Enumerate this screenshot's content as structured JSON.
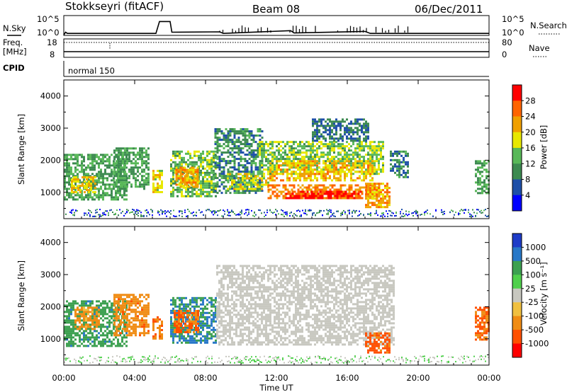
{
  "header": {
    "station": "Stokkseyri (fitACF)",
    "beam": "Beam 08",
    "date": "06/Dec/2011"
  },
  "panels": {
    "nsky_label": "N.Sky",
    "nsearch_label": "N.Search",
    "nsky_ticks": [
      "10^5",
      "10^0"
    ],
    "nsearch_ticks": [
      "10^5",
      "10^0"
    ],
    "freq_label_1": "Freq.",
    "freq_label_2": "[MHz]",
    "freq_ticks": [
      "18",
      "8"
    ],
    "nave_label": "Nave",
    "nave_ticks": [
      "80",
      "0"
    ],
    "cpid_label": "CPID",
    "cpid_value": "normal 150"
  },
  "axes": {
    "xlabel": "Time UT",
    "x_ticks": [
      "00:00",
      "04:00",
      "08:00",
      "12:00",
      "16:00",
      "20:00",
      "00:00"
    ],
    "ylabel": "Slant Range [km]",
    "y_ticks": [
      "1000",
      "2000",
      "3000",
      "4000"
    ],
    "xlim_hours": [
      0,
      24
    ],
    "ylim_km": [
      180,
      4500
    ]
  },
  "chart_data": [
    {
      "type": "heatmap",
      "quantity": "Power",
      "colorbar_label": "Power [dB]",
      "colorbar_ticks": [
        "4",
        "8",
        "12",
        "16",
        "20",
        "24",
        "28"
      ],
      "colorbar_tick_values": [
        4,
        8,
        12,
        16,
        20,
        24,
        28
      ],
      "colorbar_range": [
        0,
        32
      ],
      "colors": [
        "#0000ff",
        "#1e4fa8",
        "#3c8a50",
        "#58b858",
        "#e8e800",
        "#f0a000",
        "#ff6400",
        "#ff0000"
      ],
      "regions": [
        {
          "t0": 0.0,
          "t1": 3.6,
          "r0": 800,
          "r1": 2200,
          "level": 12
        },
        {
          "t0": 0.4,
          "t1": 1.8,
          "r0": 1000,
          "r1": 1500,
          "level": 20
        },
        {
          "t0": 2.8,
          "t1": 4.8,
          "r0": 1100,
          "r1": 2400,
          "level": 12
        },
        {
          "t0": 5.0,
          "t1": 5.6,
          "r0": 1000,
          "r1": 1700,
          "level": 18
        },
        {
          "t0": 6.0,
          "t1": 8.6,
          "r0": 900,
          "r1": 2300,
          "level": 14
        },
        {
          "t0": 6.3,
          "t1": 7.6,
          "r0": 1200,
          "r1": 1800,
          "level": 22
        },
        {
          "t0": 8.5,
          "t1": 11.2,
          "r0": 1000,
          "r1": 3000,
          "level": 10
        },
        {
          "t0": 9.2,
          "t1": 11.6,
          "r0": 1100,
          "r1": 1600,
          "level": 18
        },
        {
          "t0": 11.0,
          "t1": 18.0,
          "r0": 1600,
          "r1": 2600,
          "level": 15
        },
        {
          "t0": 11.6,
          "t1": 17.4,
          "r0": 1400,
          "r1": 2000,
          "level": 21
        },
        {
          "t0": 11.5,
          "t1": 17.8,
          "r0": 850,
          "r1": 1250,
          "level": 24
        },
        {
          "t0": 12.5,
          "t1": 16.8,
          "r0": 850,
          "r1": 1050,
          "level": 29
        },
        {
          "t0": 14.0,
          "t1": 17.2,
          "r0": 2600,
          "r1": 3300,
          "level": 8
        },
        {
          "t0": 17.0,
          "t1": 18.4,
          "r0": 550,
          "r1": 1300,
          "level": 22
        },
        {
          "t0": 18.4,
          "t1": 19.4,
          "r0": 1500,
          "r1": 2300,
          "level": 9
        },
        {
          "t0": 23.2,
          "t1": 24.0,
          "r0": 1000,
          "r1": 2000,
          "level": 12
        }
      ]
    },
    {
      "type": "heatmap",
      "quantity": "Velocity",
      "colorbar_label": "Velocity [m s⁻¹]",
      "colorbar_ticks": [
        "1000",
        "500",
        "100",
        "25",
        "-25",
        "-100",
        "-500",
        "-1000"
      ],
      "colorbar_tick_values": [
        1000,
        500,
        100,
        25,
        -25,
        -100,
        -500,
        -1000
      ],
      "colors": [
        "#1e3cc8",
        "#2878c8",
        "#3ca050",
        "#50d04c",
        "#c8c8c0",
        "#f0c040",
        "#f08c14",
        "#ff5000",
        "#ff0000"
      ],
      "ground_scatter_color": "#c8c8c0",
      "regions": [
        {
          "t0": 0.0,
          "t1": 3.6,
          "r0": 800,
          "r1": 2200,
          "vel": 200
        },
        {
          "t0": 0.6,
          "t1": 2.0,
          "r0": 1300,
          "r1": 2000,
          "vel": -150
        },
        {
          "t0": 2.8,
          "t1": 4.8,
          "r0": 1100,
          "r1": 2400,
          "vel": -200
        },
        {
          "t0": 5.0,
          "t1": 5.6,
          "r0": 1000,
          "r1": 1700,
          "vel": -300
        },
        {
          "t0": 6.0,
          "t1": 8.6,
          "r0": 900,
          "r1": 2300,
          "vel": 300
        },
        {
          "t0": 6.2,
          "t1": 7.6,
          "r0": 1200,
          "r1": 1900,
          "vel": -300
        },
        {
          "t0": 8.6,
          "t1": 18.6,
          "r0": 800,
          "r1": 3300,
          "vel": 0
        },
        {
          "t0": 17.0,
          "t1": 18.4,
          "r0": 550,
          "r1": 1200,
          "vel": -400
        },
        {
          "t0": 23.2,
          "t1": 24.0,
          "r0": 1000,
          "r1": 2000,
          "vel": -300
        }
      ]
    },
    {
      "type": "line",
      "quantity": "N.Sky",
      "x": [
        0,
        0.1,
        0.2,
        5.2,
        5.4,
        5.5,
        6.0,
        6.1,
        8.8,
        9.0,
        12.8,
        13.0,
        17.0,
        17.3,
        24.0
      ],
      "y": [
        0.1,
        0.8,
        0.5,
        0.5,
        3.5,
        3.5,
        3.5,
        0.8,
        0.9,
        0.5,
        1.2,
        0.6,
        1.0,
        0.5,
        0.5
      ]
    }
  ]
}
